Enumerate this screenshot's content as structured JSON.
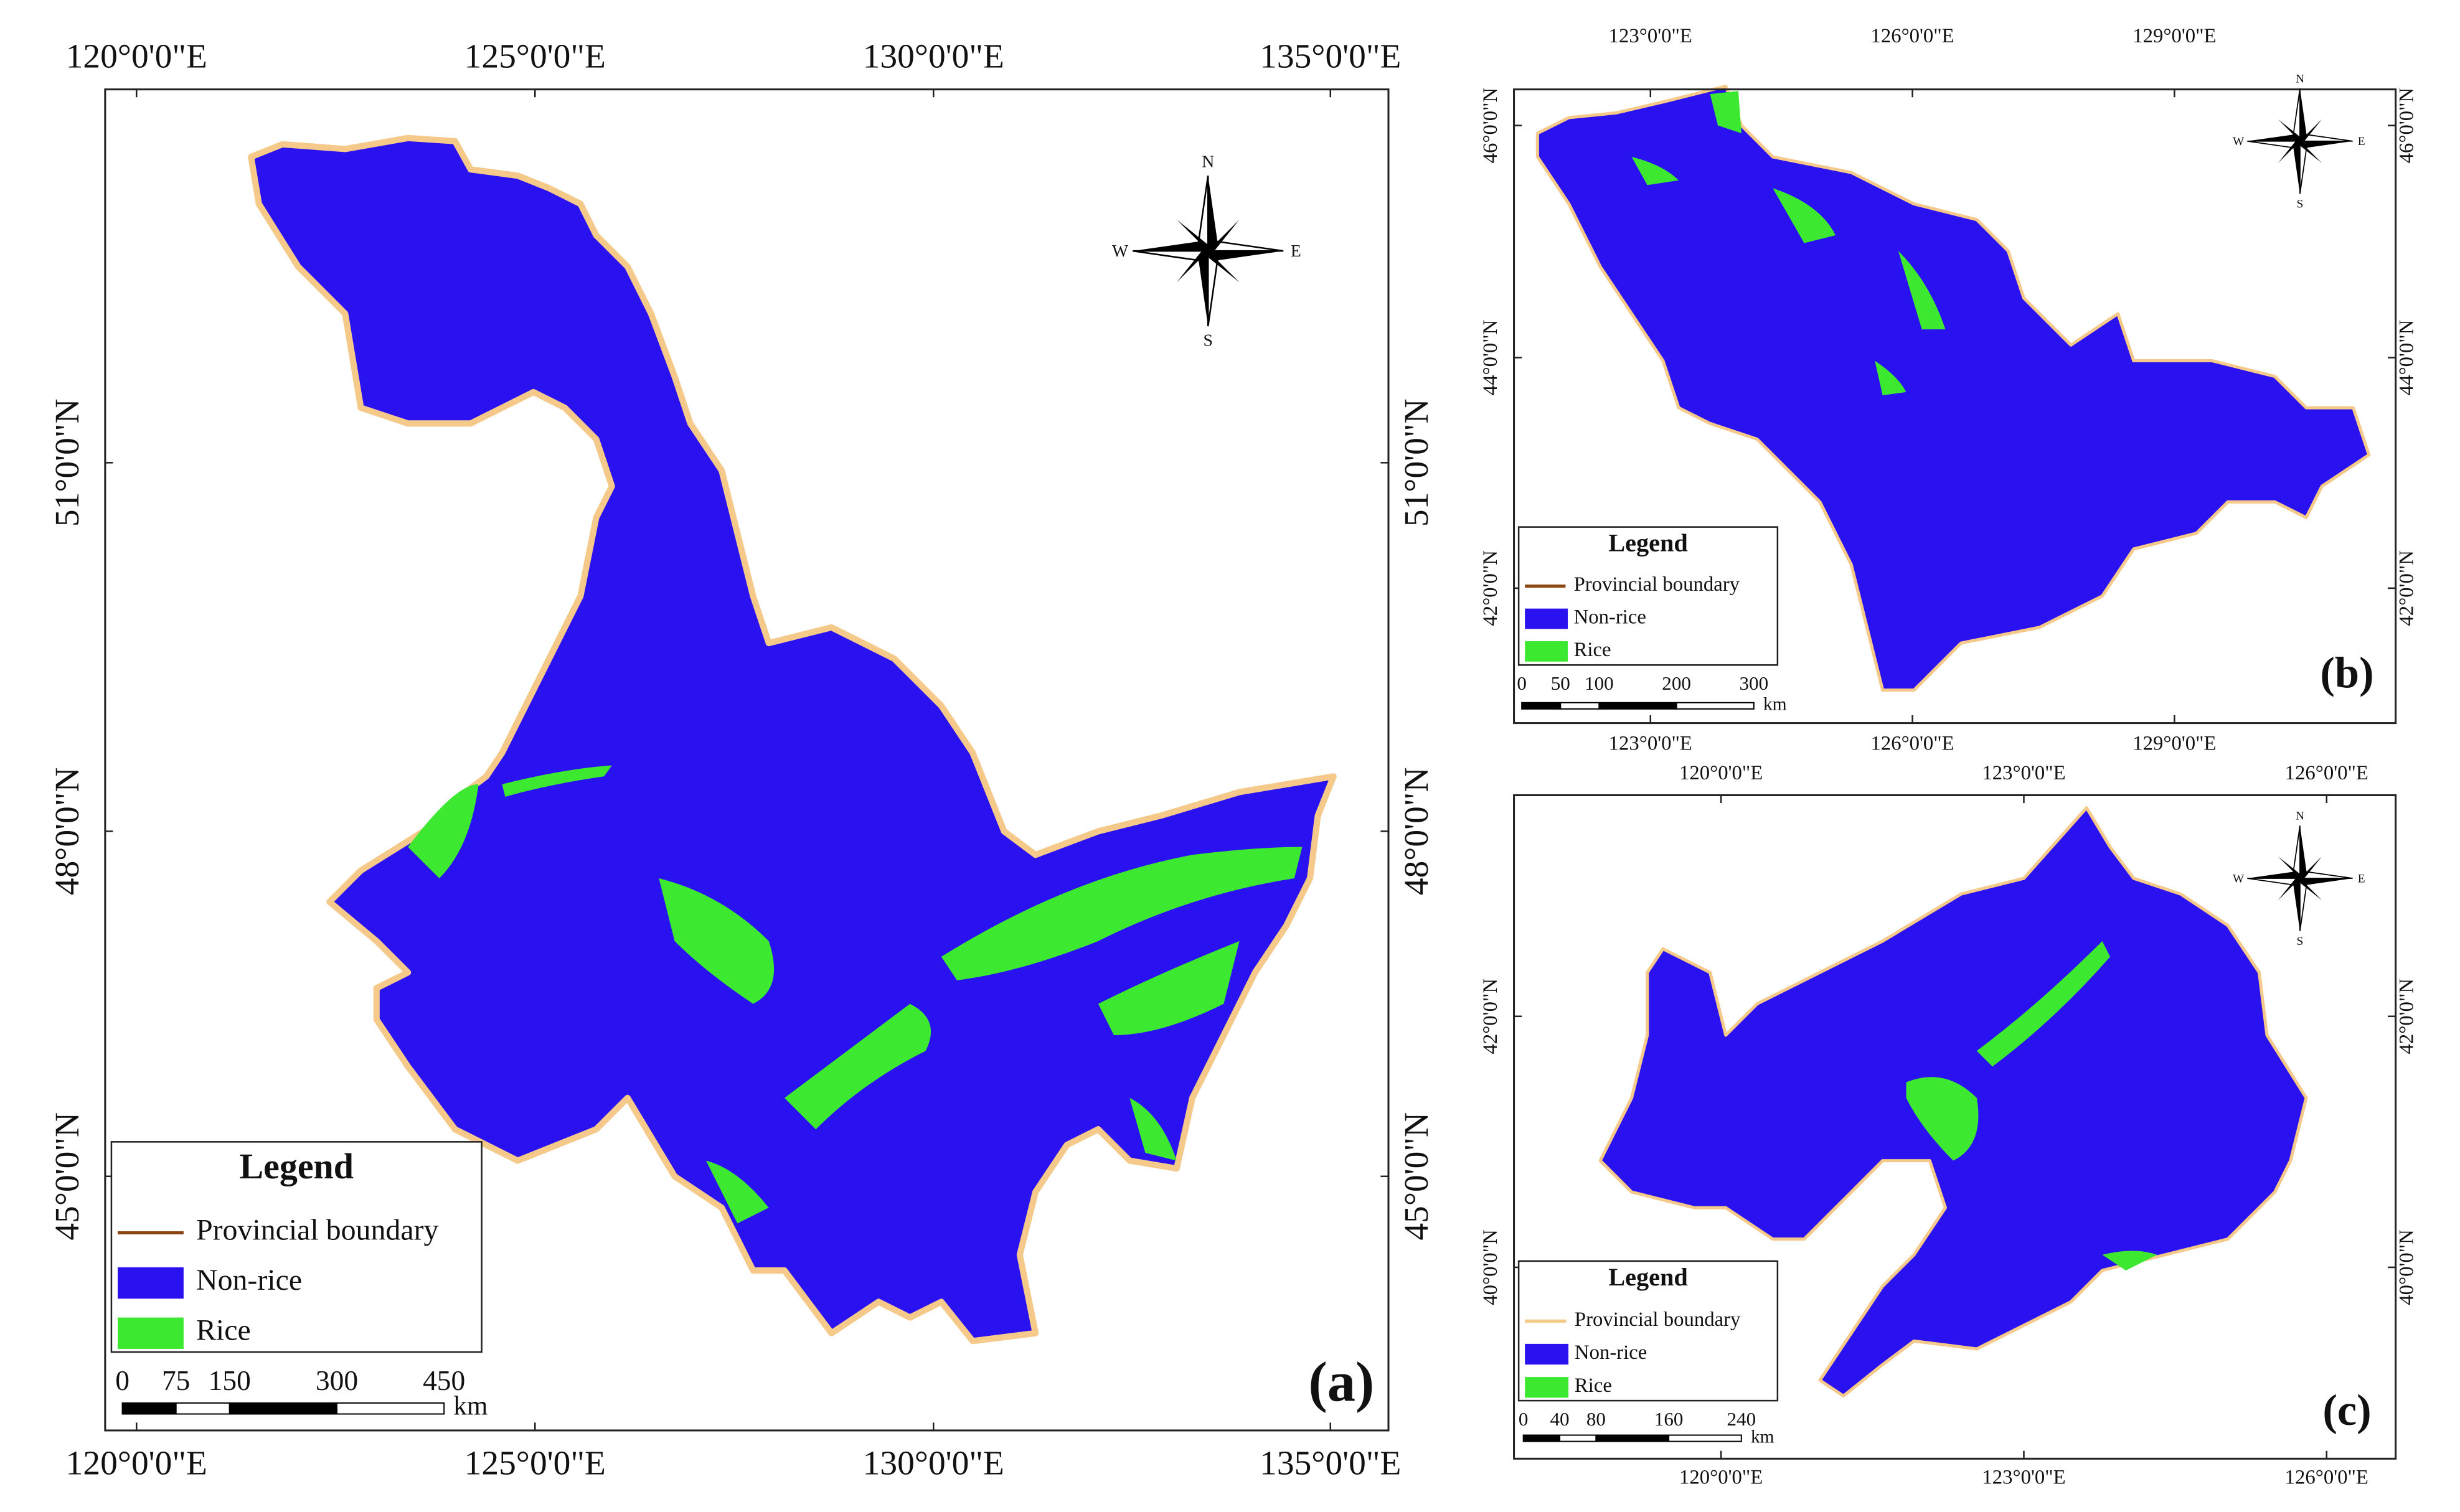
{
  "panels": [
    {
      "label": "(a)",
      "x_ticks": [
        "120°0'0\"E",
        "125°0'0\"E",
        "130°0'0\"E",
        "135°0'0\"E"
      ],
      "y_ticks": [
        "51°0'0\"N",
        "48°0'0\"N",
        "45°0'0\"N"
      ],
      "legend": {
        "title": "Legend",
        "items": [
          "Provincial boundary",
          "Non-rice",
          "Rice"
        ]
      },
      "scale_bar": {
        "labels": [
          0,
          75,
          150,
          300,
          450
        ],
        "unit": "km"
      }
    },
    {
      "label": "(b)",
      "x_ticks": [
        "123°0'0\"E",
        "126°0'0\"E",
        "129°0'0\"E"
      ],
      "y_ticks": [
        "46°0'0\"N",
        "44°0'0\"N",
        "42°0'0\"N"
      ],
      "legend": {
        "title": "Legend",
        "items": [
          "Provincial boundary",
          "Non-rice",
          "Rice"
        ]
      },
      "scale_bar": {
        "labels": [
          0,
          50,
          100,
          200,
          300
        ],
        "unit": "km"
      }
    },
    {
      "label": "(c)",
      "x_ticks": [
        "120°0'0\"E",
        "123°0'0\"E",
        "126°0'0\"E"
      ],
      "y_ticks": [
        "42°0'0\"N",
        "40°0'0\"N"
      ],
      "legend": {
        "title": "Legend",
        "items": [
          "Provincial boundary",
          "Non-rice",
          "Rice"
        ]
      },
      "scale_bar": {
        "labels": [
          0,
          40,
          80,
          160,
          240
        ],
        "unit": "km"
      }
    }
  ],
  "compass": {
    "north": "N",
    "east": "E",
    "south": "S",
    "west": "W"
  }
}
